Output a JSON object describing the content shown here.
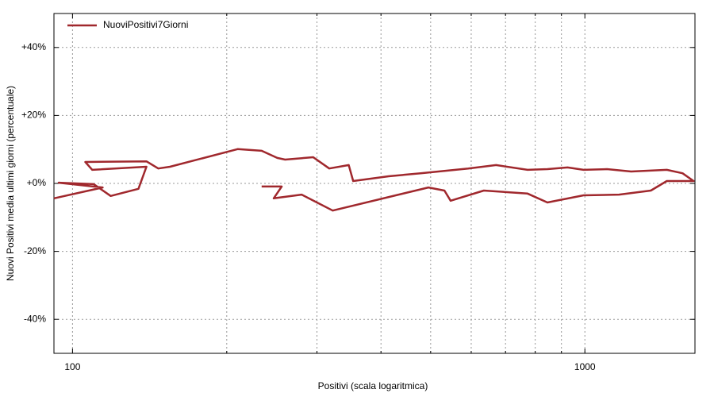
{
  "chart_data": {
    "type": "line",
    "xlabel": "Positivi (scala logaritmica)",
    "ylabel": "Nuovi Positivi media ultimi giorni (percentuale)",
    "xscale": "log",
    "xlim": [
      92,
      1640
    ],
    "xticks": [
      100,
      1000
    ],
    "xminor_ticks": [
      200,
      300,
      400,
      500,
      600,
      700,
      800,
      900
    ],
    "ylim": [
      -50,
      50
    ],
    "yticks": [
      {
        "value": -40,
        "label": "-40%"
      },
      {
        "value": -20,
        "label": "-20%"
      },
      {
        "value": 0,
        "label": "+0%"
      },
      {
        "value": 20,
        "label": "+20%"
      },
      {
        "value": 40,
        "label": "+40%"
      }
    ],
    "grid": true,
    "legend": "top-left",
    "series": [
      {
        "name": "NuoviPositivi7Giorni",
        "color": "#a0282d",
        "x": [
          92,
          114.5,
          94,
          110,
          118.7,
          134.5,
          139.4,
          109.3,
          105.9,
          139.4,
          147,
          155,
          210,
          234,
          251,
          260,
          295,
          317,
          346,
          353,
          414,
          478,
          592,
          671,
          773,
          845,
          925,
          994,
          1105,
          1231,
          1445,
          1551,
          1630,
          1445,
          1345,
          1166,
          994,
          845,
          773,
          635,
          547,
          532,
          495,
          322,
          280,
          247,
          256,
          234
        ],
        "values": [
          -4.4,
          -1.2,
          0.2,
          -0.2,
          -3.7,
          -1.6,
          4.9,
          4.0,
          6.3,
          6.5,
          4.4,
          4.9,
          10.1,
          9.6,
          7.5,
          7.0,
          7.7,
          4.4,
          5.4,
          0.7,
          2.1,
          3.0,
          4.4,
          5.4,
          4.0,
          4.2,
          4.7,
          4.0,
          4.2,
          3.5,
          4.0,
          3.0,
          0.7,
          0.7,
          -2.1,
          -3.3,
          -3.5,
          -5.6,
          -3.0,
          -2.1,
          -5.1,
          -2.1,
          -1.2,
          -8.0,
          -3.3,
          -4.4,
          -0.9,
          -0.9
        ]
      }
    ]
  }
}
